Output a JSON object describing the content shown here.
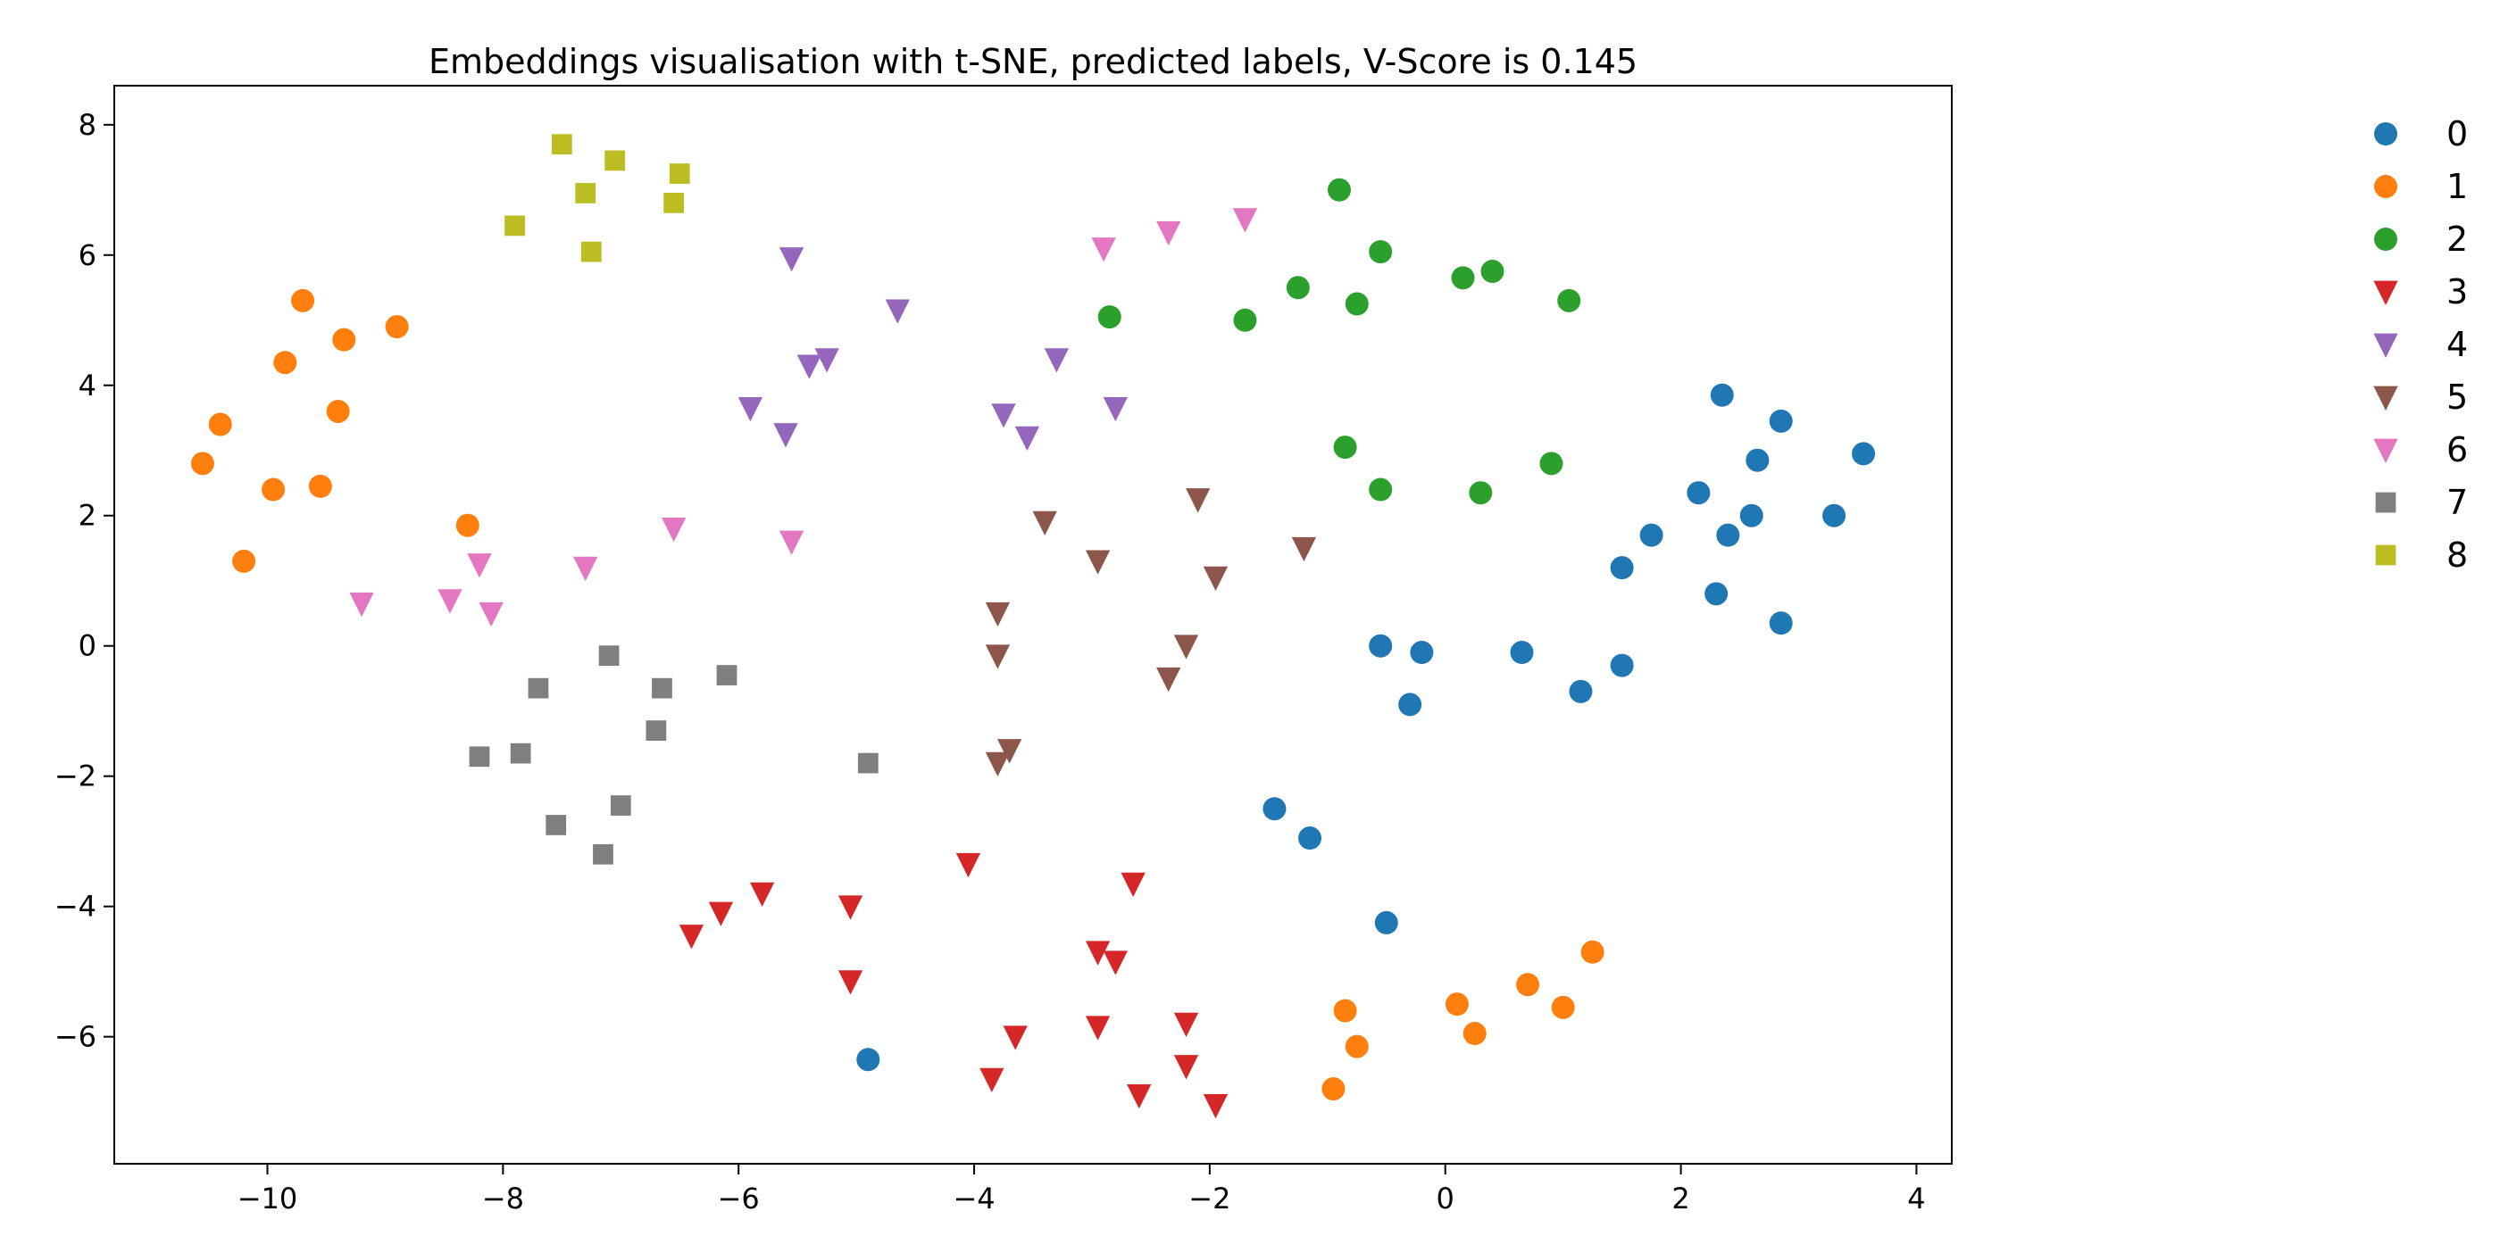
{
  "chart_data": {
    "type": "scatter",
    "title": "Embeddings visualisation with t-SNE, predicted labels, V-Score is 0.145",
    "xlabel": "",
    "ylabel": "",
    "xlim": [
      -11.3,
      4.3
    ],
    "ylim": [
      -7.95,
      8.6
    ],
    "xticks": [
      -10,
      -8,
      -6,
      -4,
      -2,
      0,
      2,
      4
    ],
    "yticks": [
      -6,
      -4,
      -2,
      0,
      2,
      4,
      6,
      8
    ],
    "grid": false,
    "legend_position": "outside-right",
    "series": [
      {
        "name": "0",
        "color": "#1f77b4",
        "marker": "circle",
        "points": [
          [
            2.35,
            3.85
          ],
          [
            2.85,
            3.45
          ],
          [
            3.55,
            2.95
          ],
          [
            2.65,
            2.85
          ],
          [
            2.15,
            2.35
          ],
          [
            2.6,
            2.0
          ],
          [
            3.3,
            2.0
          ],
          [
            1.75,
            1.7
          ],
          [
            2.4,
            1.7
          ],
          [
            1.5,
            1.2
          ],
          [
            2.3,
            0.8
          ],
          [
            2.85,
            0.35
          ],
          [
            -0.55,
            0.0
          ],
          [
            -0.2,
            -0.1
          ],
          [
            0.65,
            -0.1
          ],
          [
            1.5,
            -0.3
          ],
          [
            1.15,
            -0.7
          ],
          [
            -0.3,
            -0.9
          ],
          [
            -1.45,
            -2.5
          ],
          [
            -1.15,
            -2.95
          ],
          [
            -0.5,
            -4.25
          ],
          [
            -4.9,
            -6.35
          ]
        ]
      },
      {
        "name": "1",
        "color": "#ff7f0e",
        "marker": "circle",
        "points": [
          [
            -9.7,
            5.3
          ],
          [
            -8.9,
            4.9
          ],
          [
            -9.35,
            4.7
          ],
          [
            -9.85,
            4.35
          ],
          [
            -9.4,
            3.6
          ],
          [
            -10.4,
            3.4
          ],
          [
            -10.55,
            2.8
          ],
          [
            -9.55,
            2.45
          ],
          [
            -9.95,
            2.4
          ],
          [
            -8.3,
            1.85
          ],
          [
            -10.2,
            1.3
          ],
          [
            1.25,
            -4.7
          ],
          [
            0.7,
            -5.2
          ],
          [
            1.0,
            -5.55
          ],
          [
            0.1,
            -5.5
          ],
          [
            -0.85,
            -5.6
          ],
          [
            0.25,
            -5.95
          ],
          [
            -0.75,
            -6.15
          ],
          [
            -0.95,
            -6.8
          ]
        ]
      },
      {
        "name": "2",
        "color": "#2ca02c",
        "marker": "circle",
        "points": [
          [
            -0.9,
            7.0
          ],
          [
            -0.55,
            6.05
          ],
          [
            0.4,
            5.75
          ],
          [
            0.15,
            5.65
          ],
          [
            -1.25,
            5.5
          ],
          [
            1.05,
            5.3
          ],
          [
            -0.75,
            5.25
          ],
          [
            -2.85,
            5.05
          ],
          [
            -1.7,
            5.0
          ],
          [
            -0.85,
            3.05
          ],
          [
            0.9,
            2.8
          ],
          [
            -0.55,
            2.4
          ],
          [
            0.3,
            2.35
          ]
        ]
      },
      {
        "name": "3",
        "color": "#d62728",
        "marker": "triangle-down",
        "points": [
          [
            -4.05,
            -3.35
          ],
          [
            -2.65,
            -3.65
          ],
          [
            -5.8,
            -3.8
          ],
          [
            -6.15,
            -4.1
          ],
          [
            -5.05,
            -4.0
          ],
          [
            -6.4,
            -4.45
          ],
          [
            -2.95,
            -4.7
          ],
          [
            -2.8,
            -4.85
          ],
          [
            -5.05,
            -5.15
          ],
          [
            -2.2,
            -5.8
          ],
          [
            -2.95,
            -5.85
          ],
          [
            -3.65,
            -6.0
          ],
          [
            -2.2,
            -6.45
          ],
          [
            -3.85,
            -6.65
          ],
          [
            -2.6,
            -6.9
          ],
          [
            -1.95,
            -7.05
          ]
        ]
      },
      {
        "name": "4",
        "color": "#9467bd",
        "marker": "triangle-down",
        "points": [
          [
            -5.55,
            5.95
          ],
          [
            -4.65,
            5.15
          ],
          [
            -3.3,
            4.4
          ],
          [
            -5.25,
            4.4
          ],
          [
            -5.4,
            4.3
          ],
          [
            -5.9,
            3.65
          ],
          [
            -2.8,
            3.65
          ],
          [
            -3.75,
            3.55
          ],
          [
            -5.6,
            3.25
          ],
          [
            -3.55,
            3.2
          ]
        ]
      },
      {
        "name": "5",
        "color": "#8c564b",
        "marker": "triangle-down",
        "points": [
          [
            -2.1,
            2.25
          ],
          [
            -3.4,
            1.9
          ],
          [
            -1.2,
            1.5
          ],
          [
            -2.95,
            1.3
          ],
          [
            -1.95,
            1.05
          ],
          [
            -3.8,
            0.5
          ],
          [
            -2.2,
            0.0
          ],
          [
            -3.8,
            -0.15
          ],
          [
            -2.35,
            -0.5
          ],
          [
            -3.7,
            -1.6
          ],
          [
            -3.8,
            -1.8
          ]
        ]
      },
      {
        "name": "6",
        "color": "#e377c2",
        "marker": "triangle-down",
        "points": [
          [
            -1.7,
            6.55
          ],
          [
            -2.35,
            6.35
          ],
          [
            -2.9,
            6.1
          ],
          [
            -6.55,
            1.8
          ],
          [
            -5.55,
            1.6
          ],
          [
            -8.2,
            1.25
          ],
          [
            -7.3,
            1.2
          ],
          [
            -9.2,
            0.65
          ],
          [
            -8.45,
            0.7
          ],
          [
            -8.1,
            0.5
          ]
        ]
      },
      {
        "name": "7",
        "color": "#7f7f7f",
        "marker": "square",
        "points": [
          [
            -7.1,
            -0.15
          ],
          [
            -6.1,
            -0.45
          ],
          [
            -7.7,
            -0.65
          ],
          [
            -6.65,
            -0.65
          ],
          [
            -6.7,
            -1.3
          ],
          [
            -8.2,
            -1.7
          ],
          [
            -7.85,
            -1.65
          ],
          [
            -4.9,
            -1.8
          ],
          [
            -7.0,
            -2.45
          ],
          [
            -7.55,
            -2.75
          ],
          [
            -7.15,
            -3.2
          ]
        ]
      },
      {
        "name": "8",
        "color": "#bcbd22",
        "marker": "square",
        "points": [
          [
            -7.5,
            7.7
          ],
          [
            -7.05,
            7.45
          ],
          [
            -6.5,
            7.25
          ],
          [
            -7.3,
            6.95
          ],
          [
            -6.55,
            6.8
          ],
          [
            -7.9,
            6.45
          ],
          [
            -7.25,
            6.05
          ]
        ]
      }
    ]
  }
}
